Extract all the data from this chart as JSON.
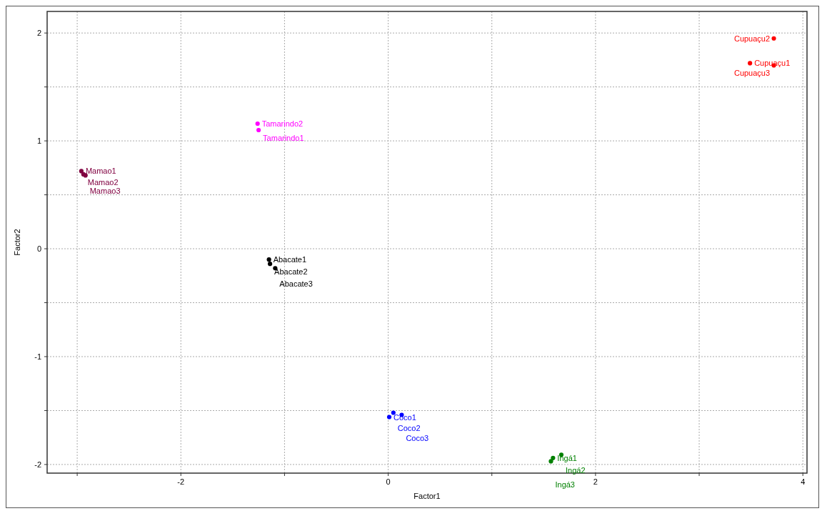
{
  "chart_data": {
    "type": "scatter",
    "xlabel": "Factor1",
    "ylabel": "Factor2",
    "xlim": [
      -3.29,
      4.04
    ],
    "ylim": [
      -2.08,
      2.2
    ],
    "xticks": [
      {
        "value": -3,
        "label": null
      },
      -2,
      {
        "value": -1,
        "label": null
      },
      0,
      {
        "value": 1,
        "label": null
      },
      2,
      {
        "value": 3,
        "label": null
      },
      4
    ],
    "yticks": [
      -2,
      {
        "value": -1.5,
        "label": null
      },
      -1,
      {
        "value": -0.5,
        "label": null
      },
      0,
      {
        "value": 0.5,
        "label": null
      },
      1,
      {
        "value": 1.5,
        "label": null
      },
      2
    ],
    "grid": true,
    "marker": "circle",
    "series": [
      {
        "color": "#ff0000",
        "x": [
          3.72,
          3.49,
          3.72
        ],
        "values": [
          1.95,
          1.72,
          1.7
        ]
      },
      {
        "color": "#ff00ff",
        "x": [
          -1.26,
          -1.25
        ],
        "values": [
          1.16,
          1.1
        ]
      },
      {
        "color": "#800040",
        "x": [
          -2.96,
          -2.94,
          -2.92
        ],
        "values": [
          0.72,
          0.69,
          0.68
        ]
      },
      {
        "color": "#000000",
        "x": [
          -1.15,
          -1.14,
          -1.09
        ],
        "values": [
          -0.1,
          -0.14,
          -0.18
        ]
      },
      {
        "color": "#0000ff",
        "x": [
          0.01,
          0.05,
          0.13
        ],
        "values": [
          -1.56,
          -1.52,
          -1.54
        ]
      },
      {
        "color": "#008000",
        "x": [
          1.59,
          1.67,
          1.57
        ],
        "values": [
          -1.94,
          -1.91,
          -1.97
        ]
      }
    ],
    "annotations": [
      {
        "text": "Cupuaçu2",
        "x": 3.72,
        "y": 1.95
      },
      {
        "text": "Cupuaçu1",
        "x": 3.49,
        "y": 1.72
      },
      {
        "text": "Cupuaçu3",
        "x": 3.72,
        "y": 1.7
      },
      {
        "text": "Tamarindo2",
        "x": -1.26,
        "y": 1.16
      },
      {
        "text": "Tamarindo1",
        "x": -1.25,
        "y": 1.1
      },
      {
        "text": "Mamao1",
        "x": -2.96,
        "y": 0.72
      },
      {
        "text": "Mamao2",
        "x": -2.94,
        "y": 0.69
      },
      {
        "text": "Mamao3",
        "x": -2.92,
        "y": 0.68
      },
      {
        "text": "Abacate1",
        "x": -1.15,
        "y": -0.1
      },
      {
        "text": "Abacate2",
        "x": -1.14,
        "y": -0.14
      },
      {
        "text": "Abacate3",
        "x": -1.09,
        "y": -0.18
      },
      {
        "text": "Coco1",
        "x": 0.01,
        "y": -1.56
      },
      {
        "text": "Coco2",
        "x": 0.05,
        "y": -1.52
      },
      {
        "text": "Coco3",
        "x": 0.13,
        "y": -1.54
      },
      {
        "text": "Ingá1",
        "x": 1.59,
        "y": -1.94
      },
      {
        "text": "Ingá2",
        "x": 1.67,
        "y": -1.91
      },
      {
        "text": "Ingá3",
        "x": 1.57,
        "y": -1.97
      }
    ]
  }
}
